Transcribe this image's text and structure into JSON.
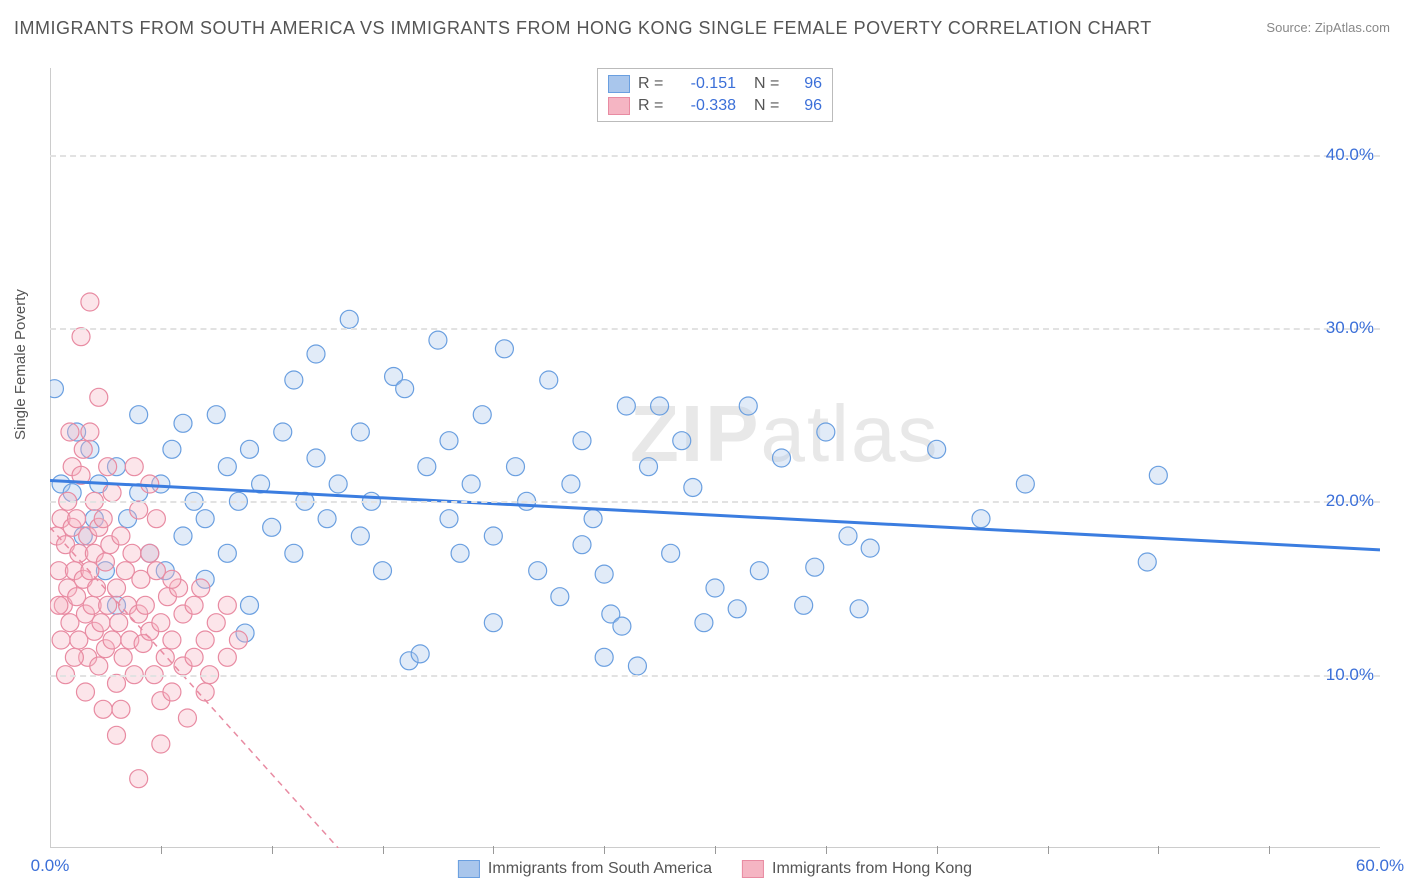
{
  "title": "IMMIGRANTS FROM SOUTH AMERICA VS IMMIGRANTS FROM HONG KONG SINGLE FEMALE POVERTY CORRELATION CHART",
  "source_label": "Source:",
  "source_value": "ZipAtlas.com",
  "y_axis_label": "Single Female Poverty",
  "watermark_bold": "ZIP",
  "watermark_light": "atlas",
  "chart": {
    "type": "scatter-with-trend",
    "xlim": [
      0,
      60
    ],
    "ylim": [
      0,
      45
    ],
    "x_ticks": [
      0,
      60
    ],
    "x_minor_ticks": [
      5,
      10,
      15,
      20,
      25,
      30,
      35,
      40,
      45,
      50,
      55
    ],
    "y_ticks": [
      10,
      20,
      30,
      40
    ],
    "y_tick_labels": [
      "10.0%",
      "20.0%",
      "30.0%",
      "40.0%"
    ],
    "x_tick_labels": [
      "0.0%",
      "60.0%"
    ],
    "grid_color": "#e2e2e2",
    "background_color": "#ffffff",
    "point_radius": 9,
    "point_opacity": 0.35,
    "series": [
      {
        "name": "Immigrants from South America",
        "color_fill": "#a9c6ec",
        "color_stroke": "#6a9fe0",
        "r": "-0.151",
        "n": "96",
        "trend": {
          "x1": 0,
          "y1": 21.2,
          "x2": 60,
          "y2": 17.2,
          "color": "#3b7de0",
          "width": 3,
          "dash": "none"
        },
        "points": [
          [
            0.2,
            26.5
          ],
          [
            0.5,
            21
          ],
          [
            1,
            20.5
          ],
          [
            1.2,
            24
          ],
          [
            1.5,
            18
          ],
          [
            1.8,
            23
          ],
          [
            2,
            19
          ],
          [
            2.2,
            21
          ],
          [
            2.5,
            16
          ],
          [
            3,
            22
          ],
          [
            3,
            14
          ],
          [
            3.5,
            19
          ],
          [
            4,
            20.5
          ],
          [
            4,
            25
          ],
          [
            4.5,
            17
          ],
          [
            5,
            21
          ],
          [
            5.2,
            16
          ],
          [
            5.5,
            23
          ],
          [
            6,
            18
          ],
          [
            6,
            24.5
          ],
          [
            6.5,
            20
          ],
          [
            7,
            15.5
          ],
          [
            7,
            19
          ],
          [
            7.5,
            25
          ],
          [
            8,
            22
          ],
          [
            8,
            17
          ],
          [
            8.5,
            20
          ],
          [
            9,
            23
          ],
          [
            9,
            14
          ],
          [
            9.5,
            21
          ],
          [
            10,
            18.5
          ],
          [
            10.5,
            24
          ],
          [
            11,
            17
          ],
          [
            11,
            27
          ],
          [
            11.5,
            20
          ],
          [
            12,
            22.5
          ],
          [
            12,
            28.5
          ],
          [
            12.5,
            19
          ],
          [
            13,
            21
          ],
          [
            13.5,
            30.5
          ],
          [
            14,
            18
          ],
          [
            14,
            24
          ],
          [
            14.5,
            20
          ],
          [
            15,
            16
          ],
          [
            15.5,
            27.2
          ],
          [
            16,
            26.5
          ],
          [
            16.2,
            10.8
          ],
          [
            16.7,
            11.2
          ],
          [
            17,
            22
          ],
          [
            17.5,
            29.3
          ],
          [
            18,
            19
          ],
          [
            18,
            23.5
          ],
          [
            18.5,
            17
          ],
          [
            19,
            21
          ],
          [
            19.5,
            25
          ],
          [
            20,
            13
          ],
          [
            20,
            18
          ],
          [
            20.5,
            28.8
          ],
          [
            21,
            22
          ],
          [
            21.5,
            20
          ],
          [
            22,
            16
          ],
          [
            22.5,
            27
          ],
          [
            23,
            14.5
          ],
          [
            23.5,
            21
          ],
          [
            24,
            17.5
          ],
          [
            24,
            23.5
          ],
          [
            24.5,
            19
          ],
          [
            25,
            11
          ],
          [
            25,
            15.8
          ],
          [
            25.3,
            13.5
          ],
          [
            26,
            25.5
          ],
          [
            26.5,
            10.5
          ],
          [
            27,
            22
          ],
          [
            27.5,
            25.5
          ],
          [
            28,
            17
          ],
          [
            28.5,
            23.5
          ],
          [
            29,
            20.8
          ],
          [
            29.5,
            13
          ],
          [
            30,
            15
          ],
          [
            31,
            13.8
          ],
          [
            31.5,
            25.5
          ],
          [
            32,
            16
          ],
          [
            33,
            22.5
          ],
          [
            34,
            14
          ],
          [
            35,
            24
          ],
          [
            36,
            18
          ],
          [
            37,
            17.3
          ],
          [
            40,
            23
          ],
          [
            42,
            19
          ],
          [
            44,
            21
          ],
          [
            49.5,
            16.5
          ],
          [
            50,
            21.5
          ],
          [
            8.8,
            12.4
          ],
          [
            25.8,
            12.8
          ],
          [
            34.5,
            16.2
          ],
          [
            36.5,
            13.8
          ]
        ]
      },
      {
        "name": "Immigrants from Hong Kong",
        "color_fill": "#f5b5c3",
        "color_stroke": "#e88ba2",
        "r": "-0.338",
        "n": "96",
        "trend": {
          "x1": 0,
          "y1": 18.5,
          "x2": 13,
          "y2": 0,
          "color": "#e88ba2",
          "width": 1.5,
          "dash": "6,5"
        },
        "points": [
          [
            0.3,
            18
          ],
          [
            0.4,
            16
          ],
          [
            0.5,
            19
          ],
          [
            0.6,
            14
          ],
          [
            0.7,
            17.5
          ],
          [
            0.8,
            15
          ],
          [
            0.8,
            20
          ],
          [
            0.9,
            13
          ],
          [
            1,
            18.5
          ],
          [
            1,
            22
          ],
          [
            1.1,
            16
          ],
          [
            1.2,
            14.5
          ],
          [
            1.2,
            19
          ],
          [
            1.3,
            12
          ],
          [
            1.3,
            17
          ],
          [
            1.4,
            21.5
          ],
          [
            1.5,
            15.5
          ],
          [
            1.5,
            23
          ],
          [
            1.6,
            13.5
          ],
          [
            1.7,
            18
          ],
          [
            1.7,
            11
          ],
          [
            1.8,
            16
          ],
          [
            1.8,
            24
          ],
          [
            1.9,
            14
          ],
          [
            2,
            17
          ],
          [
            2,
            20
          ],
          [
            2,
            12.5
          ],
          [
            2.1,
            15
          ],
          [
            2.2,
            18.5
          ],
          [
            2.2,
            10.5
          ],
          [
            2.3,
            13
          ],
          [
            2.4,
            19
          ],
          [
            2.5,
            11.5
          ],
          [
            2.5,
            16.5
          ],
          [
            2.6,
            14
          ],
          [
            2.7,
            17.5
          ],
          [
            2.8,
            12
          ],
          [
            2.8,
            20.5
          ],
          [
            3,
            15
          ],
          [
            3,
            9.5
          ],
          [
            3.1,
            13
          ],
          [
            3.2,
            18
          ],
          [
            3.3,
            11
          ],
          [
            3.4,
            16
          ],
          [
            3.5,
            14
          ],
          [
            3.6,
            12
          ],
          [
            3.7,
            17
          ],
          [
            3.8,
            10
          ],
          [
            4,
            13.5
          ],
          [
            4,
            19.5
          ],
          [
            4.1,
            15.5
          ],
          [
            4.2,
            11.8
          ],
          [
            4.3,
            14
          ],
          [
            4.5,
            12.5
          ],
          [
            4.5,
            17
          ],
          [
            4.7,
            10
          ],
          [
            4.8,
            16
          ],
          [
            5,
            13
          ],
          [
            5,
            8.5
          ],
          [
            5.2,
            11
          ],
          [
            5.3,
            14.5
          ],
          [
            5.5,
            9
          ],
          [
            5.5,
            12
          ],
          [
            5.8,
            15
          ],
          [
            6,
            10.5
          ],
          [
            6,
            13.5
          ],
          [
            6.2,
            7.5
          ],
          [
            6.5,
            11
          ],
          [
            6.5,
            14
          ],
          [
            7,
            12
          ],
          [
            7,
            9
          ],
          [
            7.2,
            10
          ],
          [
            7.5,
            13
          ],
          [
            8,
            11
          ],
          [
            8,
            14
          ],
          [
            8.5,
            12
          ],
          [
            1.4,
            29.5
          ],
          [
            1.8,
            31.5
          ],
          [
            2.2,
            26
          ],
          [
            0.9,
            24
          ],
          [
            3.8,
            22
          ],
          [
            4.5,
            21
          ],
          [
            0.5,
            12
          ],
          [
            0.7,
            10
          ],
          [
            3,
            6.5
          ],
          [
            5,
            6
          ],
          [
            4,
            4
          ],
          [
            5.5,
            15.5
          ],
          [
            6.8,
            15
          ],
          [
            2.6,
            22
          ],
          [
            1.6,
            9
          ],
          [
            2.4,
            8
          ],
          [
            1.1,
            11
          ],
          [
            0.4,
            14
          ],
          [
            3.2,
            8
          ],
          [
            4.8,
            19
          ]
        ]
      }
    ]
  },
  "legend_top": {
    "r_label": "R =",
    "n_label": "N ="
  },
  "legend_bottom": [
    {
      "label": "Immigrants from South America",
      "fill": "#a9c6ec",
      "stroke": "#6a9fe0"
    },
    {
      "label": "Immigrants from Hong Kong",
      "fill": "#f5b5c3",
      "stroke": "#e88ba2"
    }
  ]
}
